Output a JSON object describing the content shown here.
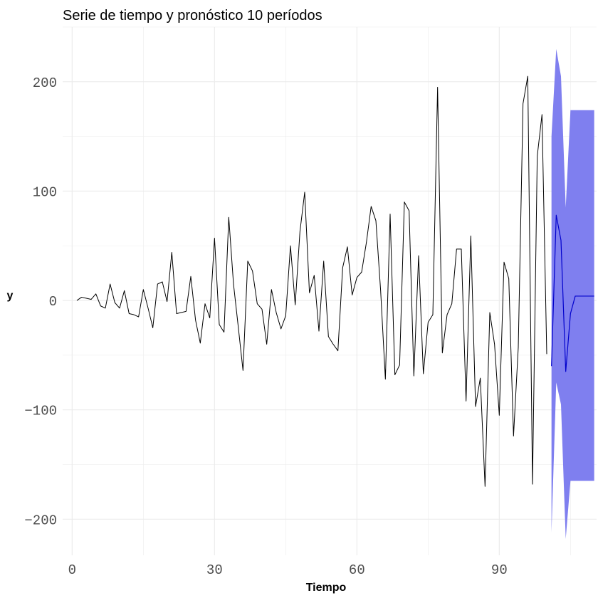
{
  "chart_data": {
    "type": "line",
    "title": "Serie de tiempo y pronóstico 10 períodos",
    "xlabel": "Tiempo",
    "ylabel": "y",
    "xlim": [
      -2,
      110.5
    ],
    "ylim": [
      -233,
      250
    ],
    "x_ticks": [
      0,
      30,
      60,
      90
    ],
    "y_ticks": [
      -200,
      -100,
      0,
      100,
      200
    ],
    "grid": true,
    "colors": {
      "series": "#000000",
      "forecast": "#0000cc",
      "interval": "#7f7fef",
      "grid": "#ebebeb"
    },
    "series": [
      {
        "values": [
          0,
          3,
          2,
          1,
          6,
          -5,
          -7,
          15,
          -2,
          -7,
          9,
          -12,
          -13,
          -15,
          10,
          -7,
          -25,
          15,
          17,
          -1,
          44,
          -12,
          -11,
          -10,
          22,
          -18,
          -39,
          -3,
          -16,
          57,
          -22,
          -29,
          76,
          15,
          -24,
          -64,
          36,
          27,
          -3,
          -8,
          -40,
          10,
          -11,
          -26,
          -14,
          50,
          -4,
          63,
          99,
          7,
          23,
          -28,
          36,
          -33,
          -40,
          -46,
          30,
          49,
          5,
          21,
          26,
          53,
          86,
          73,
          9,
          -72,
          79,
          -68,
          -59,
          90,
          82,
          -69,
          41,
          -67,
          -20,
          -13,
          195,
          -48,
          -13,
          -3,
          47,
          47,
          -92,
          59,
          -97,
          -71,
          -170,
          -11,
          -40,
          -105,
          35,
          20,
          -124,
          -43,
          180,
          205,
          -168,
          132,
          170,
          -49
        ]
      }
    ],
    "forecast": {
      "x": [
        101,
        102,
        103,
        104,
        105,
        106,
        107,
        108,
        109,
        110
      ],
      "mean": [
        -60,
        78,
        55,
        -65,
        -12,
        4,
        4,
        4,
        4,
        4
      ],
      "upper": [
        150,
        230,
        205,
        85,
        174,
        174,
        174,
        174,
        174,
        174
      ],
      "lower": [
        -212,
        -75,
        -95,
        -218,
        -165,
        -165,
        -165,
        -165,
        -165,
        -165
      ]
    }
  }
}
